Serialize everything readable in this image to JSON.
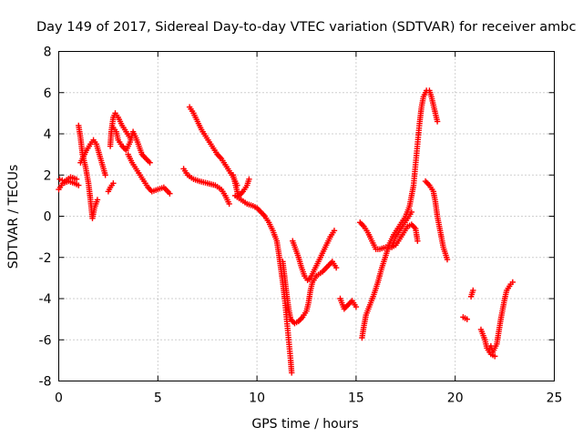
{
  "chart_data": {
    "type": "scatter",
    "title": "Day 149 of 2017, Sidereal Day-to-day VTEC variation (SDTVAR) for receiver ambc",
    "xlabel": "GPS time / hours",
    "ylabel": "SDTVAR / TECUs",
    "xlim": [
      0,
      25
    ],
    "ylim": [
      -8,
      8
    ],
    "xticks": [
      "0",
      "5",
      "10",
      "15",
      "20",
      "25"
    ],
    "yticks": [
      "-8",
      "-6",
      "-4",
      "-2",
      "0",
      "2",
      "4",
      "6",
      "8"
    ],
    "grid": true,
    "marker": "plus",
    "color": "#ff0000",
    "tracks": [
      [
        [
          0.0,
          1.3
        ],
        [
          0.2,
          1.6
        ],
        [
          0.5,
          1.7
        ],
        [
          0.8,
          1.6
        ],
        [
          1.0,
          1.5
        ]
      ],
      [
        [
          0.05,
          1.8
        ],
        [
          0.3,
          1.7
        ],
        [
          0.6,
          1.9
        ],
        [
          0.9,
          1.8
        ]
      ],
      [
        [
          1.0,
          4.4
        ],
        [
          1.1,
          3.8
        ],
        [
          1.2,
          3.0
        ],
        [
          1.35,
          2.4
        ],
        [
          1.5,
          1.6
        ],
        [
          1.6,
          0.8
        ],
        [
          1.7,
          -0.1
        ],
        [
          1.8,
          0.4
        ],
        [
          1.95,
          0.8
        ]
      ],
      [
        [
          1.1,
          2.6
        ],
        [
          1.25,
          2.9
        ],
        [
          1.4,
          3.2
        ],
        [
          1.6,
          3.5
        ],
        [
          1.75,
          3.7
        ],
        [
          1.9,
          3.5
        ],
        [
          2.05,
          3.0
        ],
        [
          2.2,
          2.5
        ],
        [
          2.35,
          2.0
        ]
      ],
      [
        [
          2.5,
          1.2
        ],
        [
          2.6,
          1.4
        ],
        [
          2.75,
          1.6
        ]
      ],
      [
        [
          2.6,
          3.4
        ],
        [
          2.65,
          4.1
        ],
        [
          2.75,
          4.8
        ],
        [
          2.85,
          5.0
        ],
        [
          3.0,
          4.8
        ],
        [
          3.2,
          4.4
        ],
        [
          3.4,
          4.1
        ],
        [
          3.6,
          3.8
        ]
      ],
      [
        [
          2.75,
          4.3
        ],
        [
          2.9,
          4.1
        ],
        [
          3.0,
          3.7
        ],
        [
          3.2,
          3.4
        ],
        [
          3.4,
          3.2
        ],
        [
          3.6,
          3.6
        ],
        [
          3.75,
          4.1
        ],
        [
          3.9,
          3.8
        ],
        [
          4.05,
          3.4
        ],
        [
          4.2,
          3.0
        ],
        [
          4.4,
          2.8
        ],
        [
          4.6,
          2.6
        ]
      ],
      [
        [
          3.5,
          3.0
        ],
        [
          3.7,
          2.6
        ],
        [
          3.9,
          2.3
        ],
        [
          4.1,
          2.0
        ],
        [
          4.3,
          1.7
        ],
        [
          4.5,
          1.4
        ],
        [
          4.7,
          1.2
        ],
        [
          5.0,
          1.3
        ],
        [
          5.3,
          1.4
        ],
        [
          5.6,
          1.1
        ]
      ],
      [
        [
          6.3,
          2.3
        ],
        [
          6.5,
          2.0
        ],
        [
          6.8,
          1.8
        ],
        [
          7.1,
          1.7
        ],
        [
          7.5,
          1.6
        ],
        [
          7.9,
          1.5
        ],
        [
          8.2,
          1.3
        ],
        [
          8.4,
          1.0
        ],
        [
          8.6,
          0.6
        ]
      ],
      [
        [
          6.6,
          5.3
        ],
        [
          6.8,
          5.0
        ],
        [
          7.0,
          4.6
        ],
        [
          7.2,
          4.2
        ],
        [
          7.4,
          3.9
        ],
        [
          7.6,
          3.6
        ],
        [
          7.8,
          3.3
        ],
        [
          8.0,
          3.0
        ],
        [
          8.2,
          2.8
        ],
        [
          8.4,
          2.5
        ],
        [
          8.6,
          2.2
        ],
        [
          8.8,
          1.9
        ],
        [
          9.0,
          1.5
        ]
      ],
      [
        [
          8.8,
          2.0
        ],
        [
          8.9,
          1.6
        ],
        [
          9.0,
          1.2
        ],
        [
          9.1,
          1.0
        ],
        [
          9.3,
          1.2
        ],
        [
          9.5,
          1.5
        ],
        [
          9.6,
          1.8
        ]
      ],
      [
        [
          8.9,
          1.0
        ],
        [
          9.2,
          0.8
        ],
        [
          9.5,
          0.6
        ],
        [
          9.8,
          0.5
        ],
        [
          10.0,
          0.4
        ],
        [
          10.2,
          0.2
        ],
        [
          10.4,
          0.0
        ],
        [
          10.6,
          -0.3
        ],
        [
          10.8,
          -0.7
        ],
        [
          11.0,
          -1.2
        ],
        [
          11.1,
          -1.8
        ],
        [
          11.2,
          -2.5
        ],
        [
          11.3,
          -3.2
        ],
        [
          11.4,
          -4.0
        ],
        [
          11.5,
          -5.0
        ],
        [
          11.6,
          -6.0
        ],
        [
          11.7,
          -7.0
        ],
        [
          11.75,
          -7.6
        ]
      ],
      [
        [
          11.3,
          -2.2
        ],
        [
          11.4,
          -3.0
        ],
        [
          11.5,
          -3.8
        ],
        [
          11.6,
          -4.5
        ],
        [
          11.7,
          -5.0
        ],
        [
          11.9,
          -5.2
        ],
        [
          12.1,
          -5.1
        ],
        [
          12.3,
          -4.9
        ],
        [
          12.5,
          -4.6
        ],
        [
          12.6,
          -4.2
        ],
        [
          12.7,
          -3.6
        ],
        [
          12.8,
          -3.2
        ],
        [
          13.0,
          -2.9
        ],
        [
          13.3,
          -2.7
        ],
        [
          13.6,
          -2.4
        ],
        [
          13.8,
          -2.2
        ],
        [
          14.0,
          -2.5
        ]
      ],
      [
        [
          11.8,
          -1.2
        ],
        [
          11.95,
          -1.6
        ],
        [
          12.1,
          -2.0
        ],
        [
          12.25,
          -2.5
        ],
        [
          12.4,
          -2.9
        ],
        [
          12.55,
          -3.1
        ],
        [
          12.7,
          -3.0
        ],
        [
          12.9,
          -2.6
        ],
        [
          13.1,
          -2.2
        ],
        [
          13.3,
          -1.8
        ],
        [
          13.5,
          -1.4
        ],
        [
          13.7,
          -1.0
        ],
        [
          13.9,
          -0.7
        ]
      ],
      [
        [
          14.2,
          -4.0
        ],
        [
          14.4,
          -4.5
        ],
        [
          14.6,
          -4.3
        ],
        [
          14.8,
          -4.1
        ],
        [
          15.0,
          -4.4
        ]
      ],
      [
        [
          15.2,
          -0.3
        ],
        [
          15.4,
          -0.5
        ],
        [
          15.6,
          -0.8
        ],
        [
          15.8,
          -1.2
        ],
        [
          16.0,
          -1.6
        ],
        [
          16.2,
          -1.6
        ],
        [
          16.5,
          -1.5
        ],
        [
          16.8,
          -1.5
        ],
        [
          17.0,
          -1.4
        ],
        [
          17.2,
          -1.1
        ],
        [
          17.4,
          -0.8
        ],
        [
          17.6,
          -0.5
        ],
        [
          17.8,
          -0.4
        ],
        [
          18.0,
          -0.6
        ],
        [
          18.1,
          -1.2
        ]
      ],
      [
        [
          15.3,
          -5.9
        ],
        [
          15.4,
          -5.3
        ],
        [
          15.5,
          -4.8
        ],
        [
          15.7,
          -4.3
        ],
        [
          15.9,
          -3.8
        ],
        [
          16.1,
          -3.2
        ],
        [
          16.3,
          -2.5
        ],
        [
          16.5,
          -1.9
        ],
        [
          16.7,
          -1.3
        ],
        [
          16.9,
          -0.9
        ],
        [
          17.1,
          -0.6
        ],
        [
          17.3,
          -0.3
        ],
        [
          17.5,
          0.0
        ],
        [
          17.7,
          0.5
        ],
        [
          17.8,
          1.0
        ],
        [
          17.9,
          1.5
        ],
        [
          18.0,
          2.5
        ],
        [
          18.1,
          3.5
        ],
        [
          18.2,
          4.5
        ],
        [
          18.3,
          5.3
        ],
        [
          18.4,
          5.8
        ],
        [
          18.55,
          6.1
        ],
        [
          18.7,
          6.1
        ],
        [
          18.8,
          5.8
        ],
        [
          18.9,
          5.4
        ],
        [
          19.0,
          5.0
        ],
        [
          19.1,
          4.6
        ]
      ],
      [
        [
          16.8,
          -1.5
        ],
        [
          17.0,
          -1.0
        ],
        [
          17.2,
          -0.7
        ],
        [
          17.4,
          -0.4
        ],
        [
          17.6,
          -0.1
        ],
        [
          17.8,
          0.2
        ]
      ],
      [
        [
          18.5,
          1.7
        ],
        [
          18.7,
          1.5
        ],
        [
          18.9,
          1.2
        ],
        [
          19.0,
          0.7
        ],
        [
          19.1,
          0.0
        ],
        [
          19.2,
          -0.5
        ],
        [
          19.3,
          -1.0
        ],
        [
          19.4,
          -1.5
        ],
        [
          19.5,
          -1.8
        ],
        [
          19.6,
          -2.1
        ]
      ],
      [
        [
          20.4,
          -4.9
        ],
        [
          20.6,
          -5.0
        ]
      ],
      [
        [
          20.8,
          -3.9
        ],
        [
          20.9,
          -3.6
        ]
      ],
      [
        [
          21.3,
          -5.5
        ],
        [
          21.5,
          -6.0
        ],
        [
          21.6,
          -6.4
        ],
        [
          21.8,
          -6.7
        ],
        [
          22.0,
          -6.8
        ]
      ],
      [
        [
          21.7,
          -6.5
        ],
        [
          21.8,
          -6.3
        ],
        [
          21.9,
          -6.6
        ],
        [
          22.1,
          -6.2
        ],
        [
          22.2,
          -5.6
        ],
        [
          22.3,
          -5.0
        ],
        [
          22.4,
          -4.5
        ],
        [
          22.5,
          -4.0
        ],
        [
          22.6,
          -3.6
        ],
        [
          22.8,
          -3.3
        ],
        [
          22.9,
          -3.2
        ]
      ]
    ]
  }
}
